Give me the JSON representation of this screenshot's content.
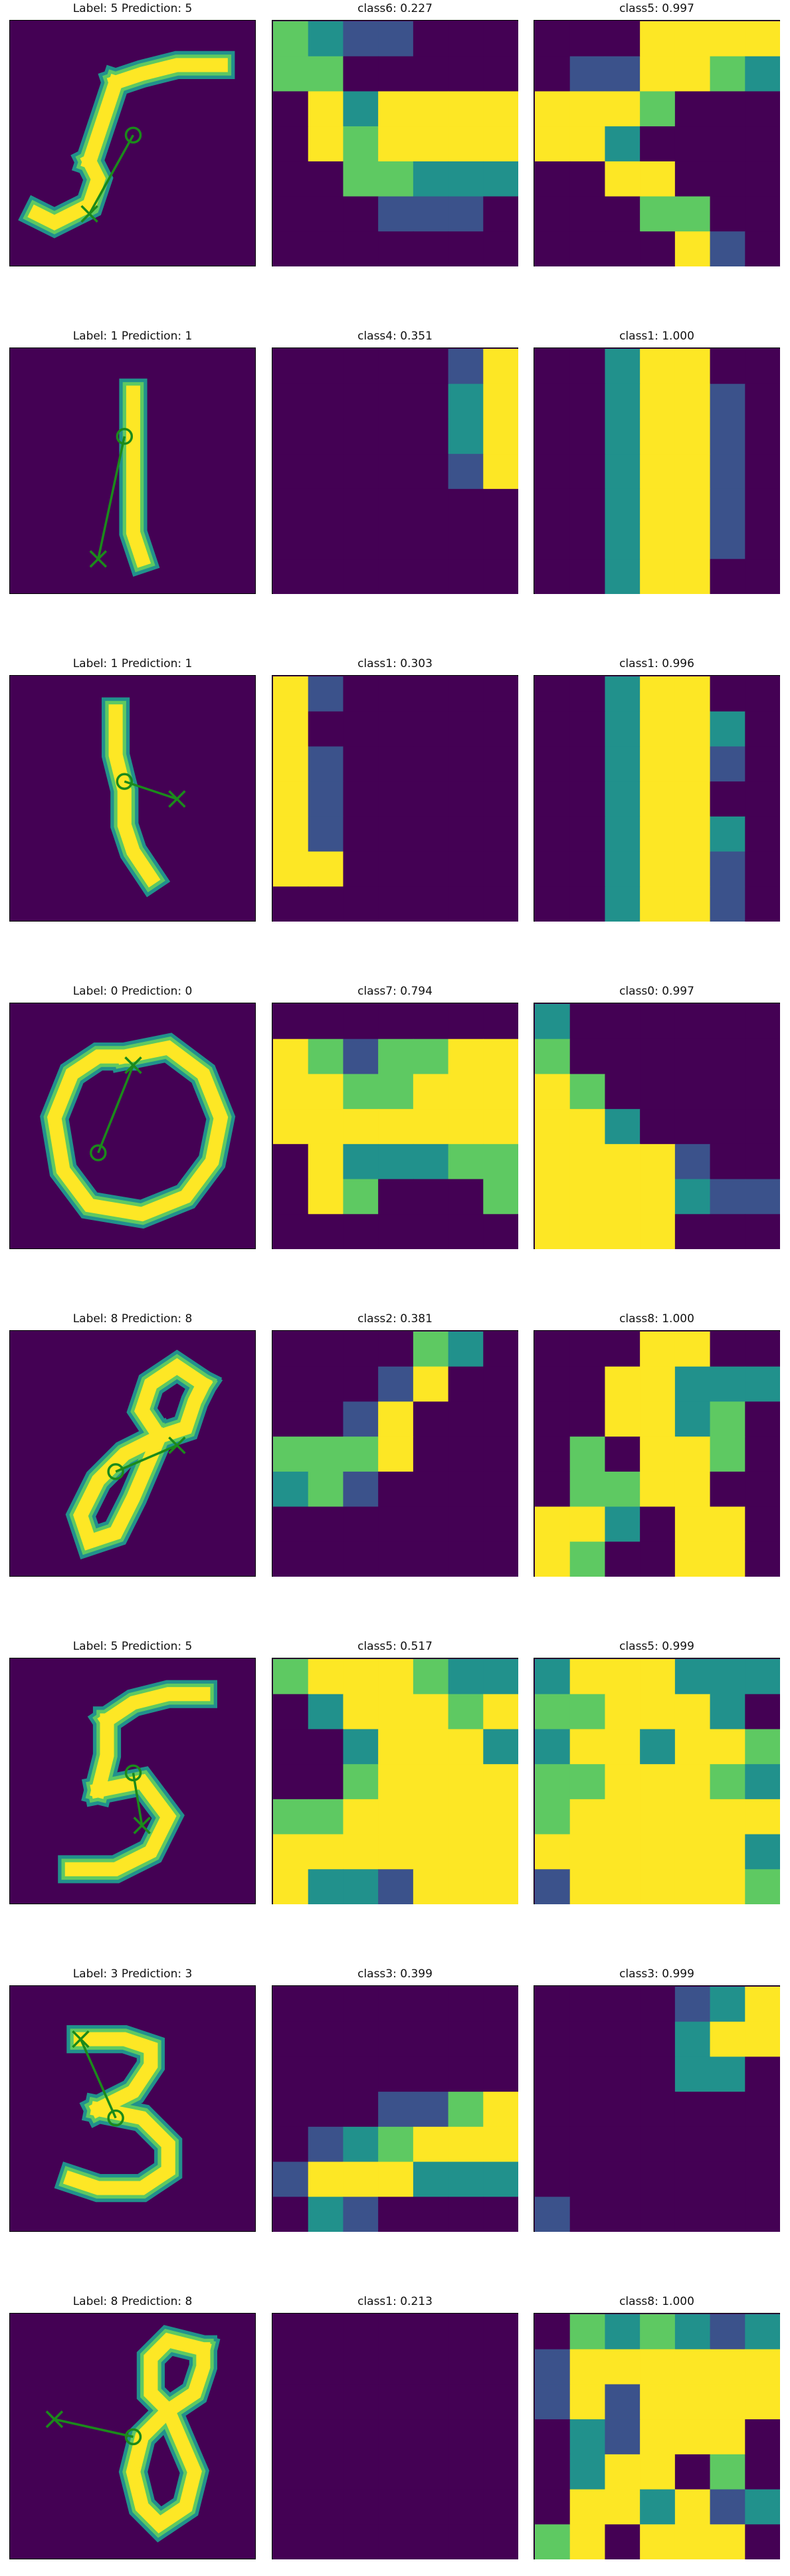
{
  "colors": {
    "low": "#440154",
    "midlow": "#3b528b",
    "mid": "#21918c",
    "midhigh": "#5ec962",
    "high": "#fde725",
    "mark": "#1b8a1b",
    "frame": "#000000"
  },
  "rows": [
    {
      "label_title": "Label: 5 Prediction: 5",
      "mid_title": "class6: 0.227",
      "right_title": "class5: 0.997",
      "digit": "5a",
      "mid_map": [
        "3211000",
        "3300000",
        "0424444",
        "0434444",
        "0033222",
        "0001110",
        "0000000"
      ],
      "right_map": [
        "0004444",
        "0114432",
        "4443000",
        "4420000",
        "0044000",
        "0003300",
        "0000410"
      ]
    },
    {
      "label_title": "Label: 1 Prediction: 1",
      "mid_title": "class4: 0.351",
      "right_title": "class1: 1.000",
      "digit": "1a",
      "mid_map": [
        "0000014",
        "0000024",
        "0000024",
        "0000014",
        "0000000",
        "0000000",
        "0000000"
      ],
      "right_map": [
        "0024400",
        "0024410",
        "0024410",
        "0024410",
        "0024410",
        "0024410",
        "0024400"
      ]
    },
    {
      "label_title": "Label: 1 Prediction: 1",
      "mid_title": "class1: 0.303",
      "right_title": "class1: 0.996",
      "digit": "1b",
      "mid_map": [
        "4100000",
        "4000000",
        "4100000",
        "4100000",
        "4100000",
        "4400000",
        "0000000"
      ],
      "right_map": [
        "0024400",
        "0024420",
        "0024410",
        "0024400",
        "0024420",
        "0024410",
        "0024410"
      ]
    },
    {
      "label_title": "Label: 0 Prediction: 0",
      "mid_title": "class7: 0.794",
      "right_title": "class0: 0.997",
      "digit": "0a",
      "mid_map": [
        "0000000",
        "4313344",
        "4433444",
        "4444444",
        "0422233",
        "0430003",
        "0000000"
      ],
      "right_map": [
        "2000000",
        "3000000",
        "4300000",
        "4420000",
        "4444100",
        "4444211",
        "4444000"
      ]
    },
    {
      "label_title": "Label: 8 Prediction: 8",
      "mid_title": "class2: 0.381",
      "right_title": "class8: 1.000",
      "digit": "8a",
      "mid_map": [
        "0000320",
        "0001400",
        "0014000",
        "3334000",
        "2310000",
        "0000000",
        "0000000"
      ],
      "right_map": [
        "0004400",
        "0044222",
        "0044230",
        "0304430",
        "0334400",
        "4420440",
        "4300440"
      ]
    },
    {
      "label_title": "Label: 5 Prediction: 5",
      "mid_title": "class5: 0.517",
      "right_title": "class5: 0.999",
      "digit": "5b",
      "mid_map": [
        "3444322",
        "0244434",
        "0024442",
        "0034444",
        "3344444",
        "4444444",
        "4221444"
      ],
      "right_map": [
        "2444222",
        "3344420",
        "2442443",
        "3344432",
        "3444444",
        "4444442",
        "1444443"
      ]
    },
    {
      "label_title": "Label: 3 Prediction: 3",
      "mid_title": "class3: 0.399",
      "right_title": "class3: 0.999",
      "digit": "3a",
      "mid_map": [
        "0000000",
        "0000000",
        "0000000",
        "0001134",
        "0123444",
        "1444222",
        "0210000"
      ],
      "right_map": [
        "0000124",
        "0000244",
        "0000220",
        "0000000",
        "0000000",
        "0000000",
        "1000000"
      ]
    },
    {
      "label_title": "Label: 8 Prediction: 8",
      "mid_title": "class1: 0.213",
      "right_title": "class8: 1.000",
      "digit": "8b",
      "mid_map": [
        "0000000",
        "0000000",
        "0000000",
        "0000000",
        "0000000",
        "0000000",
        "0000000"
      ],
      "right_map": [
        "0323212",
        "1444444",
        "1414444",
        "0214440",
        "0244030",
        "0442412",
        "3404440"
      ]
    }
  ]
}
